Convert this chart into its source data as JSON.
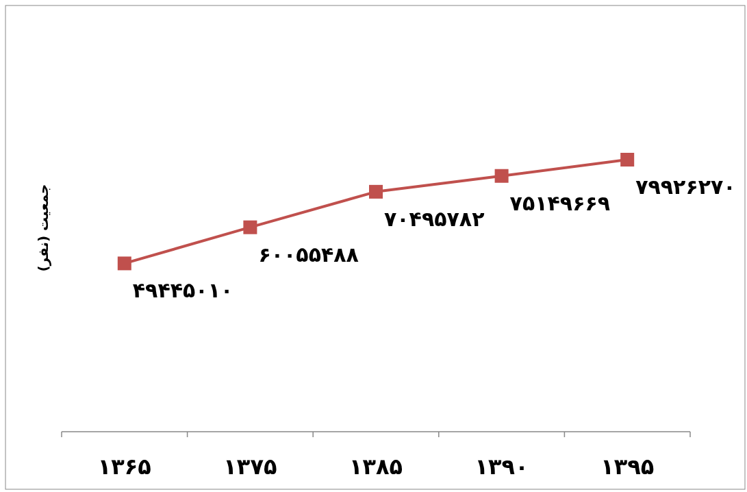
{
  "chart_data": {
    "type": "line",
    "ylabel": "جمعیت (نفر)",
    "categories": [
      "۱۳۶۵",
      "۱۳۷۵",
      "۱۳۸۵",
      "۱۳۹۰",
      "۱۳۹۵"
    ],
    "series": [
      {
        "color": "#c0504d",
        "values": [
          49445010,
          60055488,
          70495782,
          75149669,
          79926270
        ],
        "value_labels": [
          "۴۹۴۴۵۰۱۰",
          "۶۰۰۵۵۴۸۸",
          "۷۰۴۹۵۷۸۲",
          "۷۵۱۴۹۶۶۹",
          "۷۹۹۲۶۲۷۰"
        ]
      }
    ],
    "tick_labels": "x",
    "marker": "square",
    "line_style": "solid"
  }
}
